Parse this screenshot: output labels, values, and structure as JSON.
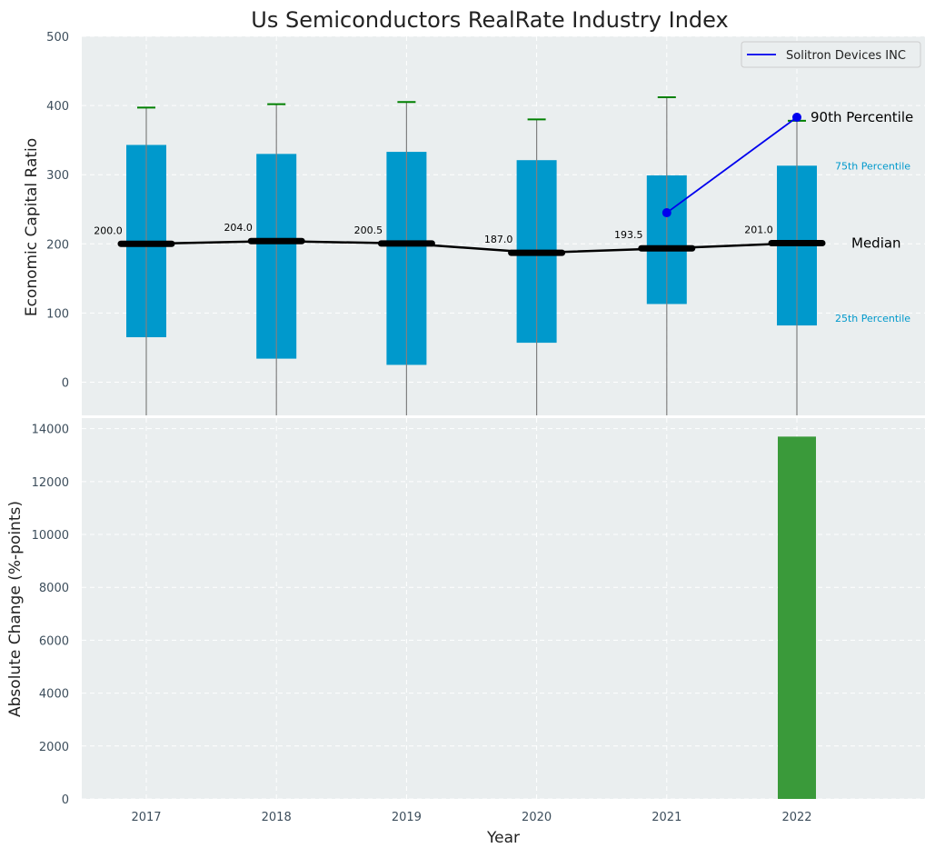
{
  "chart_data": [
    {
      "type": "box",
      "title": "Us Semiconductors RealRate Industry Index",
      "ylabel": "Economic Capital Ratio",
      "ylim": [
        -48,
        500
      ],
      "yticks": [
        0,
        100,
        200,
        300,
        400,
        500
      ],
      "categories": [
        "2017",
        "2018",
        "2019",
        "2020",
        "2021",
        "2022"
      ],
      "boxes": [
        {
          "year": "2017",
          "p25": 65,
          "median": 200.0,
          "p75": 343,
          "p90": 397,
          "median_label": "200.0"
        },
        {
          "year": "2018",
          "p25": 34,
          "median": 204.0,
          "p75": 330,
          "p90": 402,
          "median_label": "204.0"
        },
        {
          "year": "2019",
          "p25": 25,
          "median": 200.5,
          "p75": 333,
          "p90": 405,
          "median_label": "200.5"
        },
        {
          "year": "2020",
          "p25": 57,
          "median": 187.0,
          "p75": 321,
          "p90": 380,
          "median_label": "187.0"
        },
        {
          "year": "2021",
          "p25": 113,
          "median": 193.5,
          "p75": 299,
          "p90": 412,
          "median_label": "193.5"
        },
        {
          "year": "2022",
          "p25": 82,
          "median": 201.0,
          "p75": 313,
          "p90": 378,
          "median_label": "201.0"
        }
      ],
      "company": {
        "name": "Solitron Devices INC",
        "points": [
          {
            "year": "2021",
            "value": 245
          },
          {
            "year": "2022",
            "value": 383
          }
        ]
      },
      "annotations": {
        "p90": "90th Percentile",
        "p75": "75th Percentile",
        "median": "Median",
        "p25": "25th Percentile"
      },
      "legend_position": "top-right",
      "grid": true
    },
    {
      "type": "bar",
      "ylabel": "Absolute Change (%-points)",
      "xlabel": "Year",
      "categories": [
        "2017",
        "2018",
        "2019",
        "2020",
        "2021",
        "2022"
      ],
      "values": [
        0,
        0,
        0,
        0,
        0,
        13700
      ],
      "ylim": [
        0,
        14400
      ],
      "yticks": [
        0,
        2000,
        4000,
        6000,
        8000,
        10000,
        12000,
        14000
      ],
      "grid": true
    }
  ],
  "colors": {
    "plot_bg": "#EAEEEF",
    "grid": "#FFFFFF",
    "box": "#0099CC",
    "whisker": "#808080",
    "cap": "#008000",
    "median": "#000000",
    "company": "#0000EE",
    "bar": "#3A9A3A",
    "tick": "#3D4E5C",
    "p75_label": "#0099CC",
    "p25_label": "#0099CC"
  }
}
